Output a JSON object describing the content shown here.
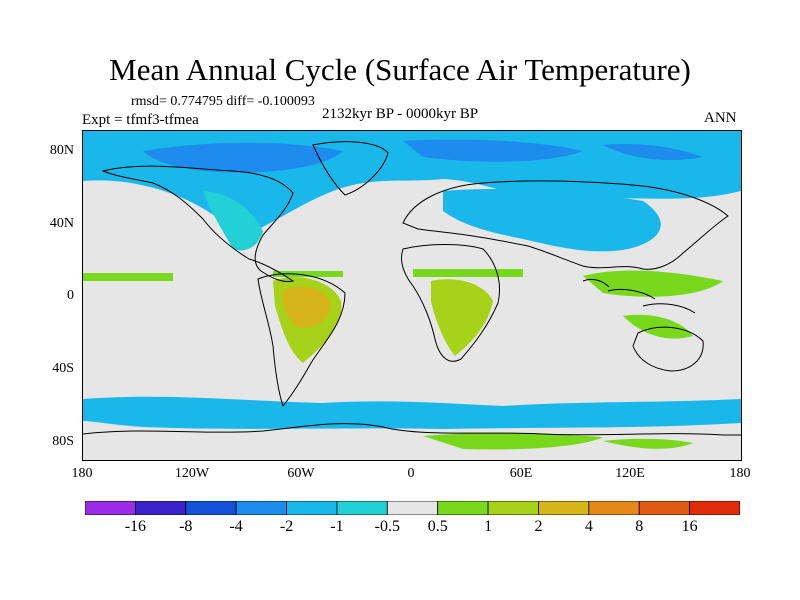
{
  "figure": {
    "title": "Mean Annual Cycle (Surface Air Temperature)",
    "stats": "rmsd= 0.774795 diff= -0.100093",
    "experiment": "Expt = tfmf3-tfmea",
    "period": "2132kyr BP - 0000kyr BP",
    "season": "ANN"
  },
  "map": {
    "variable": "surface air temperature difference",
    "projection": "cylindrical equidistant",
    "lon_ticks": [
      "180",
      "120W",
      "60W",
      "0",
      "60E",
      "120E",
      "180"
    ],
    "lat_ticks": [
      "80N",
      "40N",
      "0",
      "40S",
      "80S"
    ]
  },
  "colorbar": {
    "labels": [
      "-16",
      "-8",
      "-4",
      "-2",
      "-1",
      "-0.5",
      "0.5",
      "1",
      "2",
      "4",
      "8",
      "16"
    ],
    "colors": [
      "#9a2be6",
      "#3a22c8",
      "#1450d8",
      "#1e8cec",
      "#1ab8ea",
      "#22d0d6",
      "#e6e6e6",
      "#78d81c",
      "#a6d21a",
      "#d6b41a",
      "#e4881a",
      "#e05a14",
      "#e02a0a"
    ]
  }
}
